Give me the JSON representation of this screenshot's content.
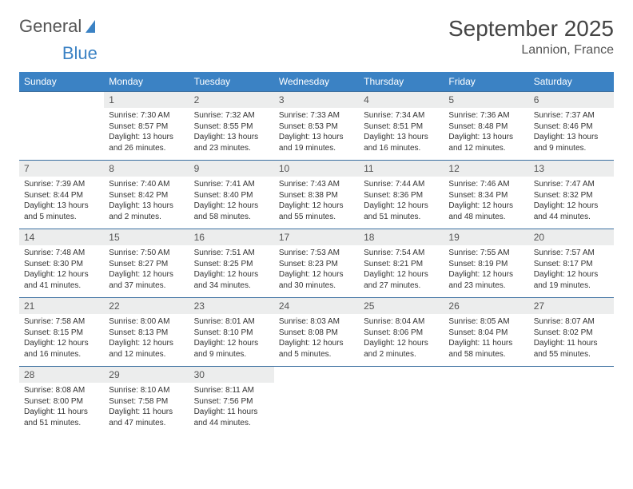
{
  "logo": {
    "text1": "General",
    "text2": "Blue"
  },
  "title": "September 2025",
  "location": "Lannion, France",
  "dow": [
    "Sunday",
    "Monday",
    "Tuesday",
    "Wednesday",
    "Thursday",
    "Friday",
    "Saturday"
  ],
  "colors": {
    "header_bg": "#3b82c4",
    "header_fg": "#ffffff",
    "daynum_bg": "#eceded",
    "border": "#3b6fa0",
    "title_color": "#444444",
    "text_color": "#333333"
  },
  "weeks": [
    [
      {
        "n": "",
        "sr": "",
        "ss": "",
        "d1": "",
        "d2": ""
      },
      {
        "n": "1",
        "sr": "Sunrise: 7:30 AM",
        "ss": "Sunset: 8:57 PM",
        "d1": "Daylight: 13 hours",
        "d2": "and 26 minutes."
      },
      {
        "n": "2",
        "sr": "Sunrise: 7:32 AM",
        "ss": "Sunset: 8:55 PM",
        "d1": "Daylight: 13 hours",
        "d2": "and 23 minutes."
      },
      {
        "n": "3",
        "sr": "Sunrise: 7:33 AM",
        "ss": "Sunset: 8:53 PM",
        "d1": "Daylight: 13 hours",
        "d2": "and 19 minutes."
      },
      {
        "n": "4",
        "sr": "Sunrise: 7:34 AM",
        "ss": "Sunset: 8:51 PM",
        "d1": "Daylight: 13 hours",
        "d2": "and 16 minutes."
      },
      {
        "n": "5",
        "sr": "Sunrise: 7:36 AM",
        "ss": "Sunset: 8:48 PM",
        "d1": "Daylight: 13 hours",
        "d2": "and 12 minutes."
      },
      {
        "n": "6",
        "sr": "Sunrise: 7:37 AM",
        "ss": "Sunset: 8:46 PM",
        "d1": "Daylight: 13 hours",
        "d2": "and 9 minutes."
      }
    ],
    [
      {
        "n": "7",
        "sr": "Sunrise: 7:39 AM",
        "ss": "Sunset: 8:44 PM",
        "d1": "Daylight: 13 hours",
        "d2": "and 5 minutes."
      },
      {
        "n": "8",
        "sr": "Sunrise: 7:40 AM",
        "ss": "Sunset: 8:42 PM",
        "d1": "Daylight: 13 hours",
        "d2": "and 2 minutes."
      },
      {
        "n": "9",
        "sr": "Sunrise: 7:41 AM",
        "ss": "Sunset: 8:40 PM",
        "d1": "Daylight: 12 hours",
        "d2": "and 58 minutes."
      },
      {
        "n": "10",
        "sr": "Sunrise: 7:43 AM",
        "ss": "Sunset: 8:38 PM",
        "d1": "Daylight: 12 hours",
        "d2": "and 55 minutes."
      },
      {
        "n": "11",
        "sr": "Sunrise: 7:44 AM",
        "ss": "Sunset: 8:36 PM",
        "d1": "Daylight: 12 hours",
        "d2": "and 51 minutes."
      },
      {
        "n": "12",
        "sr": "Sunrise: 7:46 AM",
        "ss": "Sunset: 8:34 PM",
        "d1": "Daylight: 12 hours",
        "d2": "and 48 minutes."
      },
      {
        "n": "13",
        "sr": "Sunrise: 7:47 AM",
        "ss": "Sunset: 8:32 PM",
        "d1": "Daylight: 12 hours",
        "d2": "and 44 minutes."
      }
    ],
    [
      {
        "n": "14",
        "sr": "Sunrise: 7:48 AM",
        "ss": "Sunset: 8:30 PM",
        "d1": "Daylight: 12 hours",
        "d2": "and 41 minutes."
      },
      {
        "n": "15",
        "sr": "Sunrise: 7:50 AM",
        "ss": "Sunset: 8:27 PM",
        "d1": "Daylight: 12 hours",
        "d2": "and 37 minutes."
      },
      {
        "n": "16",
        "sr": "Sunrise: 7:51 AM",
        "ss": "Sunset: 8:25 PM",
        "d1": "Daylight: 12 hours",
        "d2": "and 34 minutes."
      },
      {
        "n": "17",
        "sr": "Sunrise: 7:53 AM",
        "ss": "Sunset: 8:23 PM",
        "d1": "Daylight: 12 hours",
        "d2": "and 30 minutes."
      },
      {
        "n": "18",
        "sr": "Sunrise: 7:54 AM",
        "ss": "Sunset: 8:21 PM",
        "d1": "Daylight: 12 hours",
        "d2": "and 27 minutes."
      },
      {
        "n": "19",
        "sr": "Sunrise: 7:55 AM",
        "ss": "Sunset: 8:19 PM",
        "d1": "Daylight: 12 hours",
        "d2": "and 23 minutes."
      },
      {
        "n": "20",
        "sr": "Sunrise: 7:57 AM",
        "ss": "Sunset: 8:17 PM",
        "d1": "Daylight: 12 hours",
        "d2": "and 19 minutes."
      }
    ],
    [
      {
        "n": "21",
        "sr": "Sunrise: 7:58 AM",
        "ss": "Sunset: 8:15 PM",
        "d1": "Daylight: 12 hours",
        "d2": "and 16 minutes."
      },
      {
        "n": "22",
        "sr": "Sunrise: 8:00 AM",
        "ss": "Sunset: 8:13 PM",
        "d1": "Daylight: 12 hours",
        "d2": "and 12 minutes."
      },
      {
        "n": "23",
        "sr": "Sunrise: 8:01 AM",
        "ss": "Sunset: 8:10 PM",
        "d1": "Daylight: 12 hours",
        "d2": "and 9 minutes."
      },
      {
        "n": "24",
        "sr": "Sunrise: 8:03 AM",
        "ss": "Sunset: 8:08 PM",
        "d1": "Daylight: 12 hours",
        "d2": "and 5 minutes."
      },
      {
        "n": "25",
        "sr": "Sunrise: 8:04 AM",
        "ss": "Sunset: 8:06 PM",
        "d1": "Daylight: 12 hours",
        "d2": "and 2 minutes."
      },
      {
        "n": "26",
        "sr": "Sunrise: 8:05 AM",
        "ss": "Sunset: 8:04 PM",
        "d1": "Daylight: 11 hours",
        "d2": "and 58 minutes."
      },
      {
        "n": "27",
        "sr": "Sunrise: 8:07 AM",
        "ss": "Sunset: 8:02 PM",
        "d1": "Daylight: 11 hours",
        "d2": "and 55 minutes."
      }
    ],
    [
      {
        "n": "28",
        "sr": "Sunrise: 8:08 AM",
        "ss": "Sunset: 8:00 PM",
        "d1": "Daylight: 11 hours",
        "d2": "and 51 minutes."
      },
      {
        "n": "29",
        "sr": "Sunrise: 8:10 AM",
        "ss": "Sunset: 7:58 PM",
        "d1": "Daylight: 11 hours",
        "d2": "and 47 minutes."
      },
      {
        "n": "30",
        "sr": "Sunrise: 8:11 AM",
        "ss": "Sunset: 7:56 PM",
        "d1": "Daylight: 11 hours",
        "d2": "and 44 minutes."
      },
      {
        "n": "",
        "sr": "",
        "ss": "",
        "d1": "",
        "d2": ""
      },
      {
        "n": "",
        "sr": "",
        "ss": "",
        "d1": "",
        "d2": ""
      },
      {
        "n": "",
        "sr": "",
        "ss": "",
        "d1": "",
        "d2": ""
      },
      {
        "n": "",
        "sr": "",
        "ss": "",
        "d1": "",
        "d2": ""
      }
    ]
  ]
}
